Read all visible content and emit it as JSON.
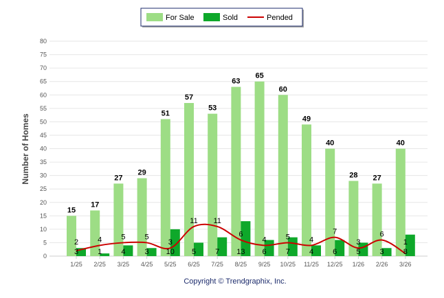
{
  "chart_data": {
    "type": "bar",
    "title": "",
    "xlabel": "",
    "ylabel": "Number of Homes",
    "ylim": [
      0,
      80
    ],
    "yticks": [
      0,
      5,
      10,
      15,
      20,
      25,
      30,
      35,
      40,
      45,
      50,
      55,
      60,
      65,
      70,
      75,
      80
    ],
    "grid": true,
    "legend_position": "top-center",
    "categories": [
      "1/25",
      "2/25",
      "3/25",
      "4/25",
      "5/25",
      "6/25",
      "7/25",
      "8/25",
      "9/25",
      "10/25",
      "11/25",
      "12/25",
      "1/26",
      "2/26",
      "3/26"
    ],
    "series": [
      {
        "name": "For Sale",
        "type": "bar",
        "color": "#9ddd85",
        "values": [
          15,
          17,
          27,
          29,
          51,
          57,
          53,
          63,
          65,
          60,
          49,
          40,
          28,
          27,
          40
        ]
      },
      {
        "name": "Sold",
        "type": "bar",
        "color": "#0ea82a",
        "values": [
          3,
          1,
          4,
          3,
          10,
          5,
          7,
          13,
          6,
          7,
          4,
          6,
          5,
          3,
          8
        ]
      },
      {
        "name": "Pended",
        "type": "line",
        "color": "#cc0000",
        "values": [
          2,
          4,
          5,
          5,
          3,
          11,
          11,
          6,
          4,
          5,
          4,
          7,
          3,
          6,
          1
        ]
      }
    ],
    "footer": "Copyright © Trendgraphix, Inc."
  }
}
